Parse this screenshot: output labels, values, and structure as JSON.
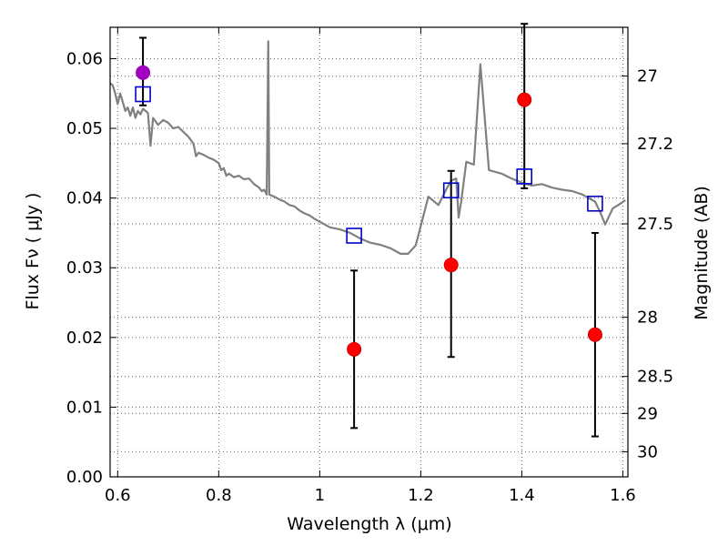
{
  "chart_data": {
    "type": "scatter",
    "xlabel": "Wavelength  λ (μm)",
    "ylabel": "Flux  Fν  ( μJy )",
    "y2label": "Magnitude (AB)",
    "xlim": [
      0.585,
      1.61
    ],
    "ylim": [
      0.0,
      0.0645
    ],
    "xticks": [
      0.6,
      0.8,
      1.0,
      1.2,
      1.4,
      1.6
    ],
    "xtick_labels": [
      "0.6",
      "0.8",
      "1",
      "1.2",
      "1.4",
      "1.6"
    ],
    "yticks": [
      0.0,
      0.01,
      0.02,
      0.03,
      0.04,
      0.05,
      0.06
    ],
    "ytick_labels": [
      "0.00",
      "0.01",
      "0.02",
      "0.03",
      "0.04",
      "0.05",
      "0.06"
    ],
    "y2ticks": [
      {
        "label": "27",
        "flux": 0.0575
      },
      {
        "label": "27.2",
        "flux": 0.0478
      },
      {
        "label": "27.5",
        "flux": 0.0363
      },
      {
        "label": "28",
        "flux": 0.0229
      },
      {
        "label": "28.5",
        "flux": 0.0144
      },
      {
        "label": "29",
        "flux": 0.0091
      },
      {
        "label": "30",
        "flux": 0.0036
      }
    ],
    "grid": true,
    "colors": {
      "spectrum": "#808080",
      "measured": "#ff0000",
      "measured_edge": "#cc0000",
      "reference": "#a000c0",
      "model_box": "#0000cc",
      "errorbar": "#000000"
    },
    "series": [
      {
        "kind": "spectrum",
        "points": [
          [
            0.585,
            0.0565
          ],
          [
            0.59,
            0.0562
          ],
          [
            0.595,
            0.055
          ],
          [
            0.6,
            0.0535
          ],
          [
            0.605,
            0.055
          ],
          [
            0.61,
            0.0538
          ],
          [
            0.615,
            0.0525
          ],
          [
            0.62,
            0.053
          ],
          [
            0.625,
            0.0518
          ],
          [
            0.63,
            0.053
          ],
          [
            0.635,
            0.0515
          ],
          [
            0.64,
            0.0525
          ],
          [
            0.645,
            0.052
          ],
          [
            0.65,
            0.0528
          ],
          [
            0.655,
            0.0525
          ],
          [
            0.66,
            0.0522
          ],
          [
            0.665,
            0.0475
          ],
          [
            0.67,
            0.0515
          ],
          [
            0.68,
            0.0505
          ],
          [
            0.69,
            0.0512
          ],
          [
            0.7,
            0.0508
          ],
          [
            0.71,
            0.05
          ],
          [
            0.72,
            0.0502
          ],
          [
            0.73,
            0.0495
          ],
          [
            0.74,
            0.0488
          ],
          [
            0.75,
            0.0478
          ],
          [
            0.755,
            0.046
          ],
          [
            0.76,
            0.0465
          ],
          [
            0.77,
            0.0462
          ],
          [
            0.78,
            0.0458
          ],
          [
            0.79,
            0.0455
          ],
          [
            0.8,
            0.045
          ],
          [
            0.805,
            0.044
          ],
          [
            0.81,
            0.0443
          ],
          [
            0.815,
            0.0432
          ],
          [
            0.82,
            0.0435
          ],
          [
            0.83,
            0.043
          ],
          [
            0.84,
            0.0432
          ],
          [
            0.85,
            0.0427
          ],
          [
            0.86,
            0.0428
          ],
          [
            0.87,
            0.042
          ],
          [
            0.88,
            0.0415
          ],
          [
            0.885,
            0.041
          ],
          [
            0.89,
            0.0412
          ],
          [
            0.895,
            0.0405
          ],
          [
            0.898,
            0.0625
          ],
          [
            0.9,
            0.0405
          ],
          [
            0.91,
            0.0402
          ],
          [
            0.92,
            0.0398
          ],
          [
            0.93,
            0.0395
          ],
          [
            0.94,
            0.039
          ],
          [
            0.95,
            0.0388
          ],
          [
            0.96,
            0.0382
          ],
          [
            0.97,
            0.0378
          ],
          [
            0.98,
            0.0375
          ],
          [
            0.99,
            0.037
          ],
          [
            1.0,
            0.0366
          ],
          [
            1.01,
            0.0362
          ],
          [
            1.02,
            0.0358
          ],
          [
            1.04,
            0.0355
          ],
          [
            1.06,
            0.035
          ],
          [
            1.08,
            0.0342
          ],
          [
            1.1,
            0.0336
          ],
          [
            1.12,
            0.0333
          ],
          [
            1.14,
            0.0328
          ],
          [
            1.16,
            0.032
          ],
          [
            1.175,
            0.032
          ],
          [
            1.19,
            0.0332
          ],
          [
            1.2,
            0.036
          ],
          [
            1.215,
            0.0402
          ],
          [
            1.235,
            0.039
          ],
          [
            1.25,
            0.0412
          ],
          [
            1.26,
            0.0425
          ],
          [
            1.27,
            0.0428
          ],
          [
            1.275,
            0.0372
          ],
          [
            1.28,
            0.0395
          ],
          [
            1.29,
            0.0452
          ],
          [
            1.305,
            0.0448
          ],
          [
            1.318,
            0.0592
          ],
          [
            1.335,
            0.044
          ],
          [
            1.36,
            0.0435
          ],
          [
            1.38,
            0.0428
          ],
          [
            1.4,
            0.0422
          ],
          [
            1.42,
            0.0418
          ],
          [
            1.44,
            0.042
          ],
          [
            1.46,
            0.0415
          ],
          [
            1.48,
            0.0412
          ],
          [
            1.5,
            0.041
          ],
          [
            1.52,
            0.0405
          ],
          [
            1.545,
            0.0395
          ],
          [
            1.555,
            0.038
          ],
          [
            1.565,
            0.0362
          ],
          [
            1.58,
            0.0385
          ],
          [
            1.595,
            0.0392
          ],
          [
            1.605,
            0.0397
          ]
        ]
      },
      {
        "kind": "measured",
        "points": [
          {
            "x": 1.068,
            "y": 0.0183,
            "ylo": 0.007,
            "yhi": 0.0296
          },
          {
            "x": 1.26,
            "y": 0.0304,
            "ylo": 0.0172,
            "yhi": 0.0439
          },
          {
            "x": 1.405,
            "y": 0.0541,
            "ylo": 0.0414,
            "yhi": 0.065
          },
          {
            "x": 1.545,
            "y": 0.0204,
            "ylo": 0.0058,
            "yhi": 0.035
          }
        ]
      },
      {
        "kind": "reference",
        "points": [
          {
            "x": 0.65,
            "y": 0.058,
            "ylo": 0.0533,
            "yhi": 0.063
          }
        ]
      },
      {
        "kind": "model",
        "points": [
          {
            "x": 0.65,
            "y": 0.0549
          },
          {
            "x": 1.068,
            "y": 0.0346
          },
          {
            "x": 1.26,
            "y": 0.0411
          },
          {
            "x": 1.405,
            "y": 0.0431
          },
          {
            "x": 1.545,
            "y": 0.0392
          }
        ]
      }
    ]
  }
}
